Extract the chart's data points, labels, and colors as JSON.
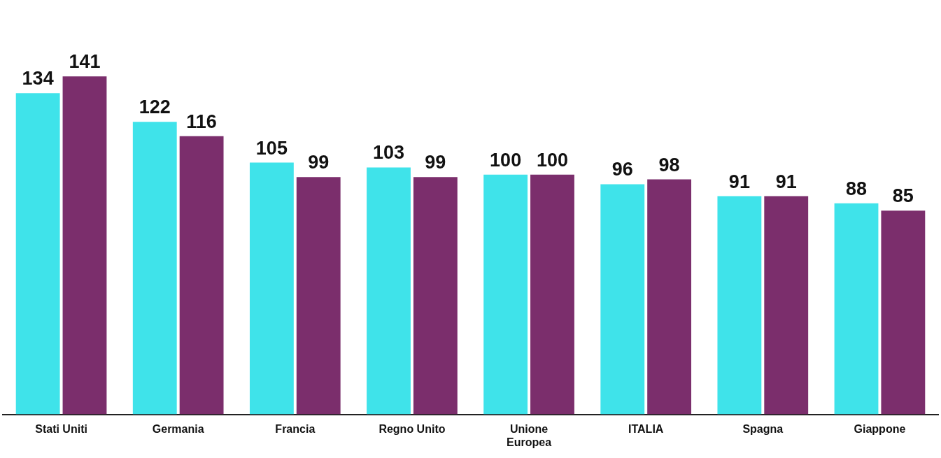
{
  "chart_data": {
    "type": "bar",
    "categories": [
      "Stati Uniti",
      "Germania",
      "Francia",
      "Regno Unito",
      "Unione\nEuropea",
      "ITALIA",
      "Spagna",
      "Giappone"
    ],
    "series": [
      {
        "color": "#3fe3ea",
        "values": [
          134,
          122,
          105,
          103,
          100,
          96,
          91,
          88
        ]
      },
      {
        "color": "#7b2e6c",
        "values": [
          141,
          116,
          99,
          99,
          100,
          98,
          91,
          85
        ]
      }
    ],
    "tick_labels": "x",
    "grid": false,
    "legend": false,
    "data_labels": true
  }
}
